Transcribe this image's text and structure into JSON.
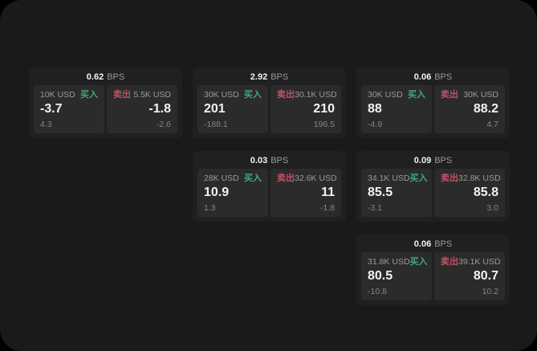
{
  "labels": {
    "bps_unit": "BPS",
    "buy": "买入",
    "sell": "卖出"
  },
  "colors": {
    "outer_bg": "#000000",
    "page_bg": "#1a1a1a",
    "card_bg": "#202020",
    "tile_bg": "#2b2b2b",
    "buy_green": "#43a878",
    "sell_red": "#c05265",
    "price_white": "#f2f2f2",
    "label_gray": "#9a9a9a",
    "sub_gray": "#858585"
  },
  "cards": [
    {
      "spread": "0.62",
      "buy": {
        "size": "10K USD",
        "price": "-3.7",
        "sub": "4.3"
      },
      "sell": {
        "size": "5.5K USD",
        "price": "-1.8",
        "sub": "-2.6"
      }
    },
    {
      "spread": "2.92",
      "buy": {
        "size": "30K USD",
        "price": "201",
        "sub": "-188.1"
      },
      "sell": {
        "size": "30.1K USD",
        "price": "210",
        "sub": "196.5"
      }
    },
    {
      "spread": "0.06",
      "buy": {
        "size": "30K USD",
        "price": "88",
        "sub": "-4.9"
      },
      "sell": {
        "size": "30K USD",
        "price": "88.2",
        "sub": "4.7"
      }
    },
    {
      "spread": "0.03",
      "buy": {
        "size": "28K USD",
        "price": "10.9",
        "sub": "1.3"
      },
      "sell": {
        "size": "32.6K USD",
        "price": "11",
        "sub": "-1.8"
      }
    },
    {
      "spread": "0.09",
      "buy": {
        "size": "34.1K USD",
        "price": "85.5",
        "sub": "-3.1"
      },
      "sell": {
        "size": "32.8K USD",
        "price": "85.8",
        "sub": "3.0"
      }
    },
    {
      "spread": "0.06",
      "buy": {
        "size": "31.8K USD",
        "price": "80.5",
        "sub": "-10.8"
      },
      "sell": {
        "size": "39.1K USD",
        "price": "80.7",
        "sub": "10.2"
      }
    }
  ]
}
